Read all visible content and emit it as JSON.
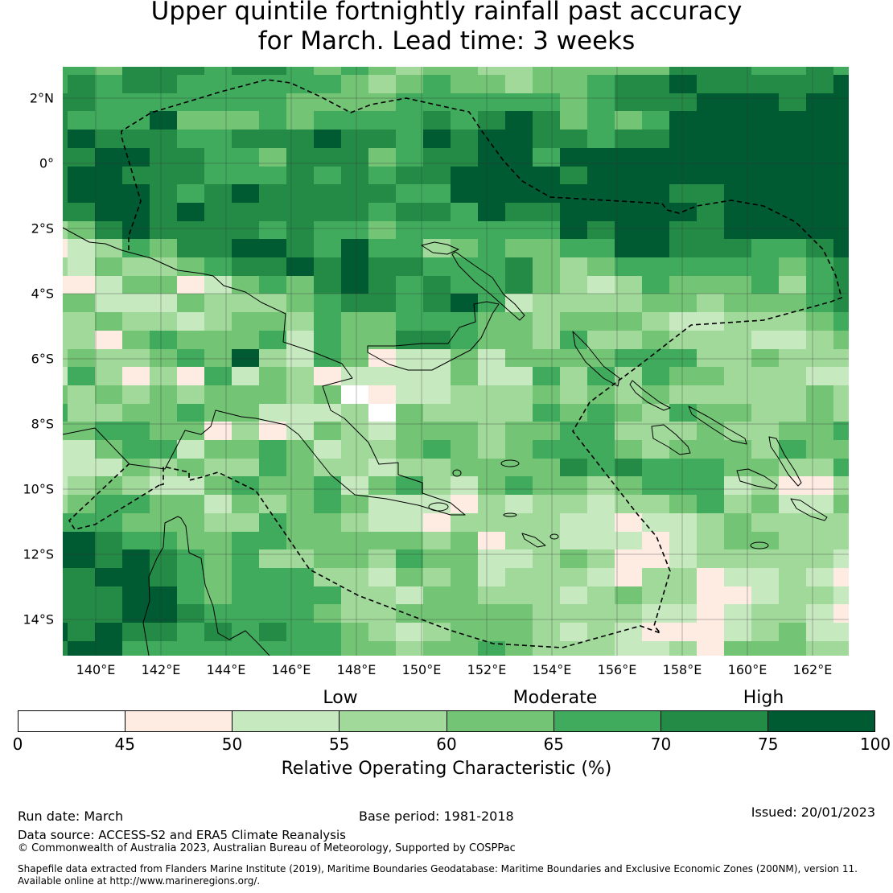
{
  "title": {
    "line1": "Upper quintile fortnightly rainfall past accuracy",
    "line2": "for March. Lead time: 3 weeks"
  },
  "map": {
    "lat_labels": [
      "2°N",
      "0°",
      "2°S",
      "4°S",
      "6°S",
      "8°S",
      "10°S",
      "12°S",
      "14°S"
    ],
    "lon_labels": [
      "140°E",
      "142°E",
      "144°E",
      "146°E",
      "148°E",
      "150°E",
      "152°E",
      "154°E",
      "156°E",
      "158°E",
      "160°E",
      "162°E"
    ],
    "lat_values": [
      2,
      0,
      -2,
      -4,
      -6,
      -8,
      -10,
      -12,
      -14
    ],
    "lon_values": [
      140,
      142,
      144,
      146,
      148,
      150,
      152,
      154,
      156,
      158,
      160,
      162
    ]
  },
  "chart_data": {
    "type": "heatmap",
    "title": "Upper quintile fortnightly rainfall past accuracy for March. Lead time: 3 weeks",
    "value_label": "Relative Operating Characteristic (%)",
    "lon_range": [
      139.0,
      163.1
    ],
    "lat_range": [
      -15.0,
      3.0
    ],
    "note": "grid values are colour class indices into colorbar.bins (0 = 0-45 ... 7 = 75-100), rows north to south, columns west to east",
    "class_grid": [
      "554666566545434433444446665565 7",
      "565665555554345443445667666667",
      "665555555444455555545666777677",
      "655574445455556567645457777777",
      "676665566676657677665667777777",
      "667766554666456677577777777777",
      "677666555656566777767777777777",
      "677765676666655777777776677777",
      "667767666666566576677777677777",
      "346766665655455555576776677777",
      "123546677657553454455776665567",
      "324334566767665556434555555456",
      "112441245467656556432354445356",
      "442224333456656752333344344456",
      "334332344354455544344432233345",
      "331454445254466544353343332234",
      "343345473254122424444555334333",
      "253131524312222422535354433322",
      "434343444340122333434343333343",
      "533445442223043333545435443343",
      "445544131243244434455333433445",
      "224552445423345434555434443544",
      "222434335433233444465655544335",
      "234322454452453245443455523113",
      "345544243454222132332334534224",
      "555444335443221333322122343333",
      "776554455444443413322212344333",
      "776765453344354422343112333332",
      "667765455533243423332133122321",
      "666775455553324433323433112332",
      "666776555543344444333322123321",
      "767665656554323444323211123422",
      "677555555554434454333223144433"
    ]
  },
  "colorbar": {
    "category_labels": [
      "Low",
      "Moderate",
      "High"
    ],
    "ticks": [
      "0",
      "45",
      "50",
      "55",
      "60",
      "65",
      "70",
      "75",
      "100"
    ],
    "bins": [
      [
        0,
        45
      ],
      [
        45,
        50
      ],
      [
        50,
        55
      ],
      [
        55,
        60
      ],
      [
        60,
        65
      ],
      [
        65,
        70
      ],
      [
        70,
        75
      ],
      [
        75,
        100
      ]
    ],
    "colors": [
      "#ffffff",
      "#feebe2",
      "#c7e9c0",
      "#a1d99b",
      "#74c476",
      "#41ab5d",
      "#238b45",
      "#005a32"
    ],
    "label": "Relative Operating Characteristic (%)"
  },
  "footer": {
    "run_date": "Run date: March",
    "base_period": "Base period: 1981-2018",
    "issued": "Issued: 20/01/2023",
    "data_source": "Data source: ACCESS-S2 and ERA5 Climate Reanalysis",
    "copyright": "© Commonwealth of Australia 2023, Australian Bureau of Meteorology, Supported by COSPPac",
    "shapefile_1": "Shapefile data extracted from Flanders Marine Institute (2019), Maritime Boundaries Geodatabase: Maritime Boundaries and Exclusive Economic Zones (200NM), version 11.",
    "shapefile_2": "Available online at http://www.marineregions.org/."
  }
}
